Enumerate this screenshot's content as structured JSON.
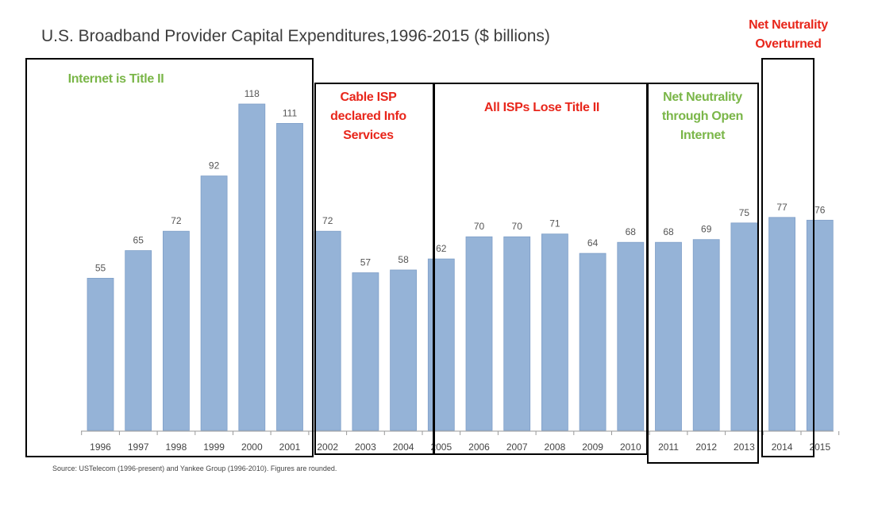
{
  "chart_data": {
    "type": "bar",
    "title": "U.S. Broadband Provider Capital Expenditures,1996-2015 ($ billions)",
    "categories": [
      "1996",
      "1997",
      "1998",
      "1999",
      "2000",
      "2001",
      "2002",
      "2003",
      "2004",
      "2005",
      "2006",
      "2007",
      "2008",
      "2009",
      "2010",
      "2011",
      "2012",
      "2013",
      "2014",
      "2015"
    ],
    "values": [
      55,
      65,
      72,
      92,
      118,
      111,
      72,
      57,
      58,
      62,
      70,
      70,
      71,
      64,
      68,
      68,
      69,
      75,
      77,
      76
    ],
    "ylim": [
      0,
      125
    ],
    "grid": false,
    "bar_color": "#95b3d7",
    "annotations": [
      {
        "text": "Internet is Title II",
        "color": "#7ab648"
      },
      {
        "text": "Cable ISP\ndeclared Info\nServices",
        "color": "#e8261b"
      },
      {
        "text": "All ISPs Lose Title II",
        "color": "#e8261b"
      },
      {
        "text": "Net Neutrality\nthrough Open\nInternet",
        "color": "#7ab648"
      },
      {
        "text": "Net Neutrality\nOverturned",
        "color": "#e8261b"
      }
    ],
    "source": "Source: USTelecom (1996-present) and Yankee Group (1996-2010). Figures are rounded."
  }
}
